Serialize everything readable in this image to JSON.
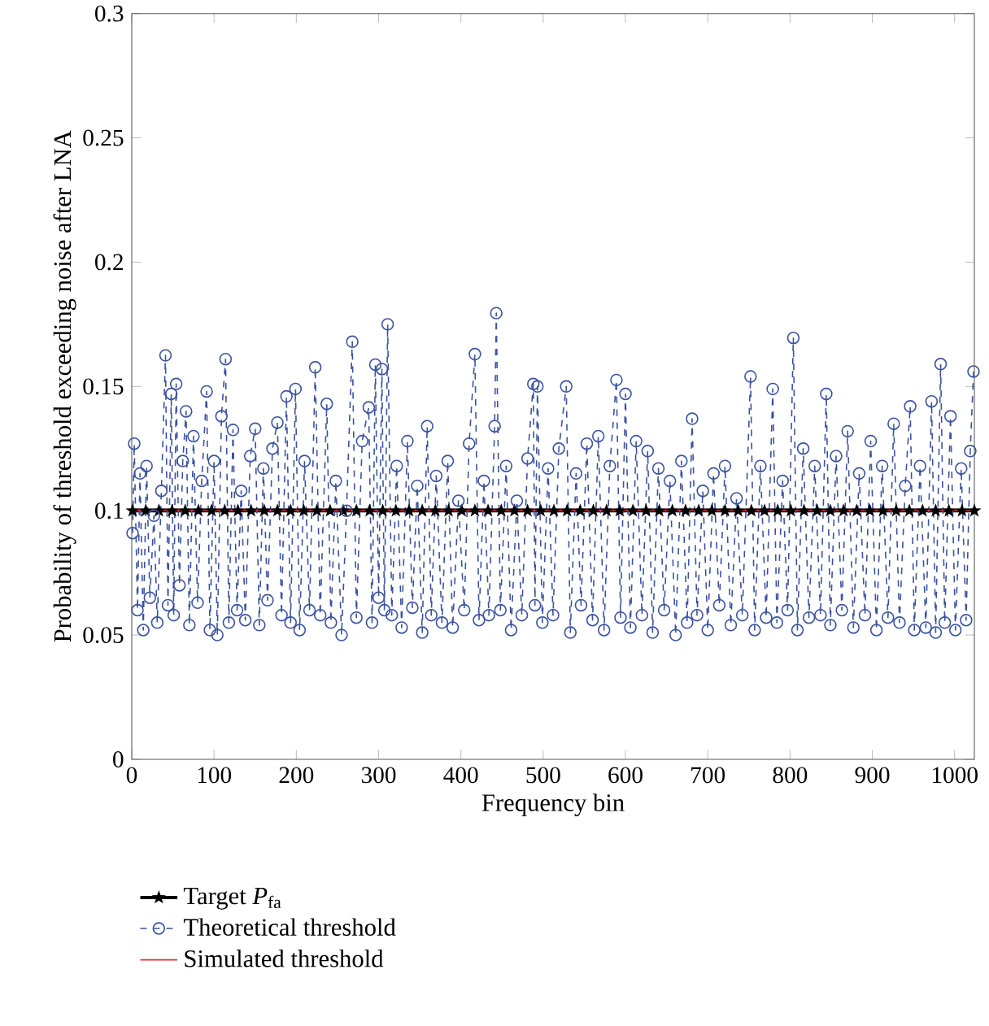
{
  "chart_data": {
    "type": "line",
    "xlabel": "Frequency bin",
    "ylabel": "Probability of threshold exceeding noise after LNA",
    "xlim": [
      0,
      1024
    ],
    "xticks": [
      0,
      100,
      200,
      300,
      400,
      500,
      600,
      700,
      800,
      900,
      1000
    ],
    "ylim": [
      0,
      0.3
    ],
    "yticks": [
      0,
      0.05,
      0.1,
      0.15,
      0.2,
      0.25,
      0.3
    ],
    "grid": false,
    "legend": "bottom",
    "series": [
      {
        "name": "Target *P*$_{fa}$",
        "color": "#000000",
        "marker": "star",
        "line_style": "solid",
        "x": [
          1,
          17,
          33,
          49,
          65,
          81,
          97,
          113,
          129,
          145,
          161,
          177,
          193,
          209,
          225,
          241,
          257,
          273,
          289,
          305,
          321,
          337,
          353,
          369,
          385,
          401,
          417,
          433,
          449,
          465,
          481,
          497,
          513,
          529,
          545,
          561,
          577,
          593,
          609,
          625,
          641,
          657,
          673,
          689,
          705,
          721,
          737,
          753,
          769,
          785,
          801,
          817,
          833,
          849,
          865,
          881,
          897,
          913,
          929,
          945,
          961,
          977,
          993,
          1009,
          1024
        ],
        "values": [
          0.1,
          0.1,
          0.1,
          0.1,
          0.1,
          0.1,
          0.1,
          0.1,
          0.1,
          0.1,
          0.1,
          0.1,
          0.1,
          0.1,
          0.1,
          0.1,
          0.1,
          0.1,
          0.1,
          0.1,
          0.1,
          0.1,
          0.1,
          0.1,
          0.1,
          0.1,
          0.1,
          0.1,
          0.1,
          0.1,
          0.1,
          0.1,
          0.1,
          0.1,
          0.1,
          0.1,
          0.1,
          0.1,
          0.1,
          0.1,
          0.1,
          0.1,
          0.1,
          0.1,
          0.1,
          0.1,
          0.1,
          0.1,
          0.1,
          0.1,
          0.1,
          0.1,
          0.1,
          0.1,
          0.1,
          0.1,
          0.1,
          0.1,
          0.1,
          0.1,
          0.1,
          0.1,
          0.1,
          0.1,
          0.1
        ]
      },
      {
        "name": "Theoretical threshold",
        "color": "#3a52a0",
        "marker": "circle",
        "line_style": "dashed",
        "x": [
          1,
          3,
          7,
          10,
          14,
          18,
          22,
          27,
          31,
          36,
          41,
          44,
          48,
          51,
          54,
          58,
          62,
          66,
          70,
          75,
          80,
          85,
          91,
          95,
          100,
          104,
          109,
          114,
          118,
          123,
          128,
          133,
          138,
          144,
          150,
          155,
          160,
          165,
          171,
          177,
          182,
          188,
          193,
          199,
          204,
          210,
          216,
          223,
          229,
          237,
          242,
          248,
          255,
          261,
          268,
          273,
          280,
          288,
          292,
          296,
          300,
          304,
          307,
          311,
          316,
          322,
          328,
          335,
          341,
          347,
          353,
          359,
          364,
          370,
          377,
          384,
          390,
          397,
          404,
          410,
          417,
          422,
          428,
          434,
          441,
          443,
          448,
          455,
          461,
          468,
          474,
          481,
          488,
          490,
          493,
          499,
          506,
          512,
          519,
          528,
          533,
          540,
          546,
          553,
          560,
          567,
          574,
          581,
          589,
          594,
          600,
          606,
          613,
          620,
          627,
          633,
          640,
          647,
          654,
          661,
          668,
          675,
          681,
          687,
          694,
          700,
          707,
          714,
          721,
          728,
          735,
          742,
          752,
          757,
          764,
          771,
          779,
          784,
          791,
          797,
          804,
          809,
          816,
          823,
          830,
          837,
          844,
          849,
          856,
          863,
          870,
          877,
          884,
          891,
          898,
          905,
          912,
          919,
          926,
          933,
          940,
          946,
          951,
          958,
          965,
          972,
          977,
          983,
          988,
          995,
          1001,
          1008,
          1014,
          1019,
          1023
        ],
        "values": [
          0.091,
          0.127,
          0.06,
          0.115,
          0.052,
          0.118,
          0.065,
          0.098,
          0.055,
          0.108,
          0.1625,
          0.062,
          0.147,
          0.058,
          0.151,
          0.07,
          0.12,
          0.14,
          0.054,
          0.13,
          0.063,
          0.112,
          0.148,
          0.052,
          0.12,
          0.05,
          0.138,
          0.161,
          0.055,
          0.1325,
          0.06,
          0.108,
          0.056,
          0.122,
          0.133,
          0.054,
          0.117,
          0.064,
          0.125,
          0.1355,
          0.058,
          0.146,
          0.055,
          0.149,
          0.052,
          0.12,
          0.06,
          0.1577,
          0.058,
          0.143,
          0.055,
          0.112,
          0.05,
          0.1,
          0.168,
          0.057,
          0.128,
          0.1416,
          0.055,
          0.1588,
          0.065,
          0.157,
          0.06,
          0.175,
          0.058,
          0.118,
          0.053,
          0.128,
          0.061,
          0.11,
          0.051,
          0.134,
          0.058,
          0.114,
          0.055,
          0.12,
          0.053,
          0.104,
          0.06,
          0.127,
          0.163,
          0.056,
          0.112,
          0.058,
          0.134,
          0.1795,
          0.06,
          0.118,
          0.052,
          0.104,
          0.058,
          0.121,
          0.151,
          0.062,
          0.15,
          0.055,
          0.117,
          0.058,
          0.125,
          0.15,
          0.051,
          0.115,
          0.062,
          0.127,
          0.056,
          0.13,
          0.052,
          0.118,
          0.1526,
          0.057,
          0.147,
          0.053,
          0.128,
          0.058,
          0.124,
          0.051,
          0.117,
          0.06,
          0.112,
          0.05,
          0.12,
          0.055,
          0.137,
          0.058,
          0.108,
          0.052,
          0.115,
          0.062,
          0.118,
          0.054,
          0.105,
          0.058,
          0.154,
          0.052,
          0.118,
          0.057,
          0.149,
          0.055,
          0.112,
          0.06,
          0.1695,
          0.052,
          0.125,
          0.057,
          0.118,
          0.058,
          0.147,
          0.054,
          0.122,
          0.06,
          0.132,
          0.053,
          0.115,
          0.058,
          0.128,
          0.052,
          0.118,
          0.057,
          0.135,
          0.055,
          0.11,
          0.142,
          0.052,
          0.118,
          0.053,
          0.144,
          0.051,
          0.159,
          0.055,
          0.138,
          0.052,
          0.117,
          0.056,
          0.124,
          0.156
        ]
      },
      {
        "name": "Simulated threshold",
        "color": "#e03030",
        "marker": "none",
        "line_style": "solid",
        "x": [
          1,
          1024
        ],
        "values": [
          0.1,
          0.1
        ]
      }
    ]
  }
}
